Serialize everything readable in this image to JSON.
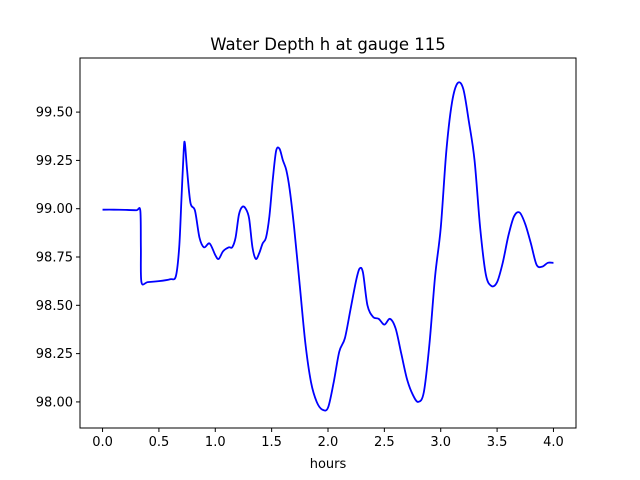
{
  "chart_data": {
    "type": "line",
    "title": "Water Depth h at gauge 115",
    "xlabel": "hours",
    "ylabel": "",
    "xlim": [
      -0.2,
      4.2
    ],
    "ylim": [
      97.865,
      99.78
    ],
    "grid": false,
    "legend": "none",
    "xticks": [
      {
        "value": 0.0,
        "label": "0.0"
      },
      {
        "value": 0.5,
        "label": "0.5"
      },
      {
        "value": 1.0,
        "label": "1.0"
      },
      {
        "value": 1.5,
        "label": "1.5"
      },
      {
        "value": 2.0,
        "label": "2.0"
      },
      {
        "value": 2.5,
        "label": "2.5"
      },
      {
        "value": 3.0,
        "label": "3.0"
      },
      {
        "value": 3.5,
        "label": "3.5"
      },
      {
        "value": 4.0,
        "label": "4.0"
      }
    ],
    "yticks": [
      {
        "value": 98.0,
        "label": "98.00"
      },
      {
        "value": 98.25,
        "label": "98.25"
      },
      {
        "value": 98.5,
        "label": "98.50"
      },
      {
        "value": 98.75,
        "label": "98.75"
      },
      {
        "value": 99.0,
        "label": "99.00"
      },
      {
        "value": 99.25,
        "label": "99.25"
      },
      {
        "value": 99.5,
        "label": "99.50"
      }
    ],
    "series": [
      {
        "color": "#0000ff",
        "x": [
          0.0,
          0.1,
          0.2,
          0.3,
          0.335,
          0.34,
          0.345,
          0.4,
          0.5,
          0.6,
          0.65,
          0.68,
          0.7,
          0.72,
          0.73,
          0.75,
          0.78,
          0.82,
          0.86,
          0.9,
          0.95,
          1.0,
          1.03,
          1.07,
          1.12,
          1.15,
          1.18,
          1.21,
          1.24,
          1.27,
          1.3,
          1.33,
          1.36,
          1.39,
          1.42,
          1.45,
          1.48,
          1.51,
          1.54,
          1.57,
          1.6,
          1.63,
          1.66,
          1.7,
          1.75,
          1.8,
          1.85,
          1.9,
          1.95,
          2.0,
          2.05,
          2.1,
          2.15,
          2.2,
          2.25,
          2.28,
          2.31,
          2.35,
          2.4,
          2.45,
          2.5,
          2.55,
          2.6,
          2.65,
          2.7,
          2.75,
          2.8,
          2.85,
          2.9,
          2.95,
          3.0,
          3.05,
          3.1,
          3.15,
          3.2,
          3.25,
          3.3,
          3.35,
          3.4,
          3.45,
          3.5,
          3.55,
          3.6,
          3.65,
          3.7,
          3.75,
          3.8,
          3.85,
          3.9,
          3.95,
          4.0
        ],
        "y": [
          98.995,
          98.995,
          98.994,
          98.992,
          98.99,
          98.8,
          98.62,
          98.62,
          98.625,
          98.635,
          98.65,
          98.8,
          99.05,
          99.3,
          99.34,
          99.2,
          99.03,
          98.99,
          98.85,
          98.8,
          98.82,
          98.76,
          98.74,
          98.78,
          98.8,
          98.8,
          98.85,
          98.97,
          99.01,
          99.0,
          98.95,
          98.8,
          98.74,
          98.77,
          98.82,
          98.85,
          98.96,
          99.15,
          99.3,
          99.31,
          99.25,
          99.2,
          99.1,
          98.9,
          98.6,
          98.3,
          98.1,
          98.0,
          97.96,
          97.97,
          98.1,
          98.26,
          98.33,
          98.48,
          98.63,
          98.69,
          98.67,
          98.5,
          98.44,
          98.43,
          98.4,
          98.43,
          98.38,
          98.25,
          98.12,
          98.04,
          98.0,
          98.05,
          98.3,
          98.65,
          98.9,
          99.3,
          99.55,
          99.65,
          99.62,
          99.45,
          99.25,
          98.9,
          98.66,
          98.6,
          98.62,
          98.72,
          98.86,
          98.96,
          98.98,
          98.92,
          98.82,
          98.71,
          98.7,
          98.72,
          98.72
        ]
      }
    ]
  }
}
